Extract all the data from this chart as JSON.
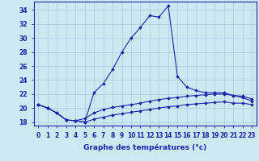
{
  "xlabel": "Graphe des températures (°c)",
  "x": [
    0,
    1,
    2,
    3,
    4,
    5,
    6,
    7,
    8,
    9,
    10,
    11,
    12,
    13,
    14,
    15,
    16,
    17,
    18,
    19,
    20,
    21,
    22,
    23
  ],
  "temp_main": [
    20.5,
    20.0,
    19.3,
    18.3,
    18.2,
    18.0,
    22.2,
    23.5,
    25.5,
    28.0,
    30.0,
    31.5,
    33.2,
    33.0,
    34.6,
    24.5,
    23.0,
    22.5,
    22.2,
    22.2,
    22.2,
    21.8,
    21.5,
    21.0
  ],
  "temp_mid": [
    20.5,
    20.0,
    19.3,
    18.3,
    18.2,
    18.5,
    19.3,
    19.8,
    20.1,
    20.3,
    20.5,
    20.7,
    21.0,
    21.2,
    21.4,
    21.5,
    21.7,
    21.8,
    21.9,
    22.0,
    22.0,
    21.8,
    21.7,
    21.3
  ],
  "temp_low": [
    20.5,
    20.0,
    19.3,
    18.3,
    18.2,
    18.0,
    18.4,
    18.7,
    19.0,
    19.2,
    19.4,
    19.6,
    19.8,
    20.0,
    20.2,
    20.3,
    20.5,
    20.6,
    20.7,
    20.8,
    20.9,
    20.7,
    20.7,
    20.5
  ],
  "line_color": "#2222aa",
  "bg_color": "#cce8f0",
  "grid_color": "#aaccdd",
  "ylim": [
    17.5,
    35.2
  ],
  "yticks": [
    18,
    20,
    22,
    24,
    26,
    28,
    30,
    32,
    34
  ],
  "marker": "D",
  "markersize": 1.8,
  "linewidth": 0.8,
  "xlabel_fontsize": 6.5,
  "tick_fontsize": 5.5
}
